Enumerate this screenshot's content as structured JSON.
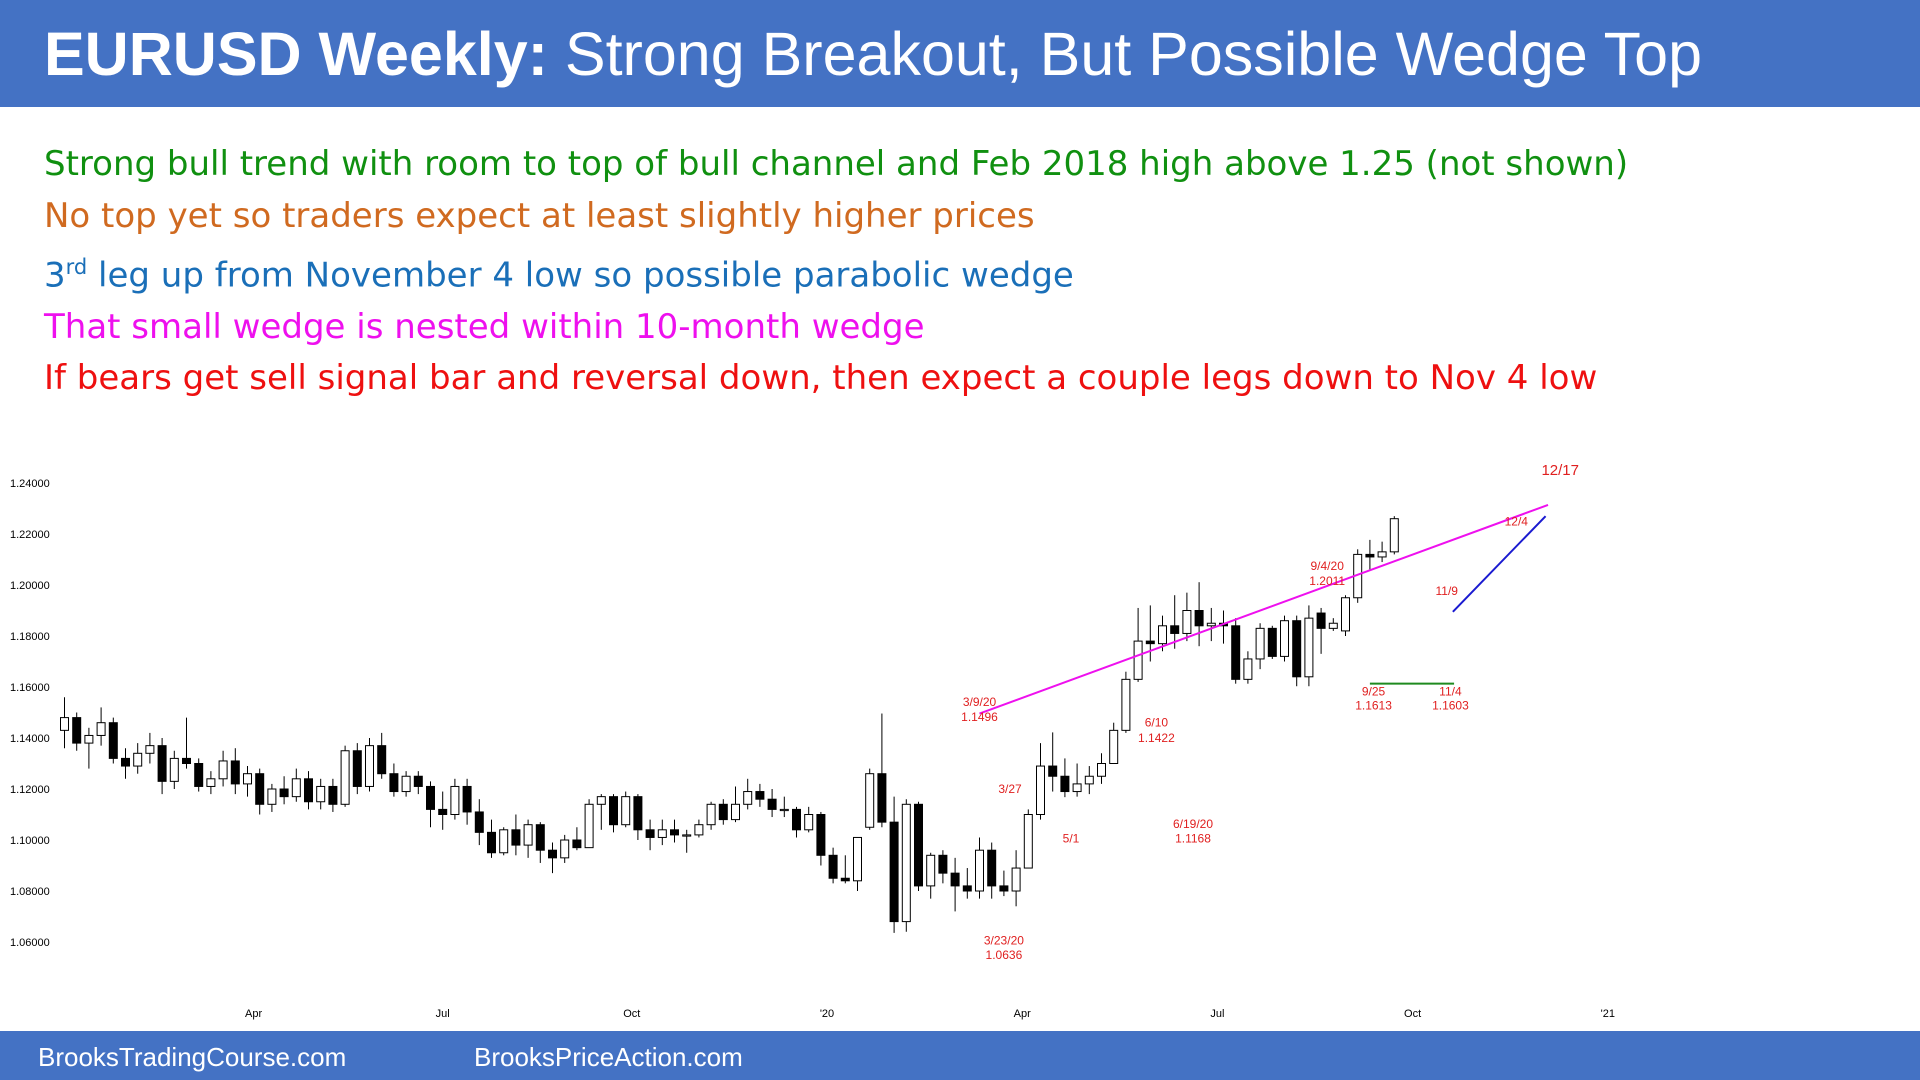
{
  "header": {
    "title_bold": "EURUSD Weekly:",
    "title_rest": " Strong Breakout, But Possible Wedge Top"
  },
  "bullets": [
    {
      "text": "Strong bull trend with room to top of bull channel and Feb 2018 high above 1.25 (not shown)",
      "color": "#109010"
    },
    {
      "text": "No top yet so traders expect at least slightly higher prices",
      "color": "#d06a20"
    },
    {
      "prefix": "3",
      "sup": "rd",
      "text": " leg up from November 4 low so possible parabolic wedge",
      "color": "#1a6fb8"
    },
    {
      "text": "That small wedge is nested within 10-month wedge",
      "color": "#ee10ee"
    },
    {
      "text": "If bears get sell signal bar and reversal down, then expect a couple legs down to Nov 4 low",
      "color": "#ee1010"
    }
  ],
  "footer": {
    "left": "BrooksTradingCourse.com",
    "right": "BrooksPriceAction.com"
  },
  "chart_data": {
    "type": "candlestick",
    "title": "EURUSD Weekly",
    "ylim": [
      1.05,
      1.245
    ],
    "y_ticks": [
      "1.24000",
      "1.22000",
      "1.20000",
      "1.18000",
      "1.16000",
      "1.14000",
      "1.12000",
      "1.10000",
      "1.08000",
      "1.06000"
    ],
    "x_ticks": [
      {
        "label": "Apr",
        "week": 15.5
      },
      {
        "label": "Jul",
        "week": 31
      },
      {
        "label": "Oct",
        "week": 46.5
      },
      {
        "label": "'20",
        "week": 62.5
      },
      {
        "label": "Apr",
        "week": 78.5
      },
      {
        "label": "Jul",
        "week": 94.5
      },
      {
        "label": "Oct",
        "week": 110.5
      },
      {
        "label": "'21",
        "week": 126.5
      }
    ],
    "candles": [
      {
        "o": 1.143,
        "h": 1.156,
        "l": 1.136,
        "c": 1.148
      },
      {
        "o": 1.148,
        "h": 1.15,
        "l": 1.135,
        "c": 1.138
      },
      {
        "o": 1.138,
        "h": 1.144,
        "l": 1.128,
        "c": 1.141
      },
      {
        "o": 1.141,
        "h": 1.152,
        "l": 1.137,
        "c": 1.146
      },
      {
        "o": 1.146,
        "h": 1.148,
        "l": 1.13,
        "c": 1.132
      },
      {
        "o": 1.132,
        "h": 1.136,
        "l": 1.124,
        "c": 1.129
      },
      {
        "o": 1.129,
        "h": 1.138,
        "l": 1.126,
        "c": 1.134
      },
      {
        "o": 1.134,
        "h": 1.142,
        "l": 1.13,
        "c": 1.137
      },
      {
        "o": 1.137,
        "h": 1.14,
        "l": 1.118,
        "c": 1.123
      },
      {
        "o": 1.123,
        "h": 1.135,
        "l": 1.12,
        "c": 1.132
      },
      {
        "o": 1.132,
        "h": 1.148,
        "l": 1.128,
        "c": 1.13
      },
      {
        "o": 1.13,
        "h": 1.132,
        "l": 1.119,
        "c": 1.121
      },
      {
        "o": 1.121,
        "h": 1.127,
        "l": 1.118,
        "c": 1.124
      },
      {
        "o": 1.124,
        "h": 1.135,
        "l": 1.121,
        "c": 1.131
      },
      {
        "o": 1.131,
        "h": 1.136,
        "l": 1.118,
        "c": 1.122
      },
      {
        "o": 1.122,
        "h": 1.129,
        "l": 1.117,
        "c": 1.126
      },
      {
        "o": 1.126,
        "h": 1.128,
        "l": 1.11,
        "c": 1.114
      },
      {
        "o": 1.114,
        "h": 1.122,
        "l": 1.111,
        "c": 1.12
      },
      {
        "o": 1.12,
        "h": 1.125,
        "l": 1.114,
        "c": 1.117
      },
      {
        "o": 1.117,
        "h": 1.128,
        "l": 1.115,
        "c": 1.124
      },
      {
        "o": 1.124,
        "h": 1.127,
        "l": 1.112,
        "c": 1.115
      },
      {
        "o": 1.115,
        "h": 1.124,
        "l": 1.112,
        "c": 1.121
      },
      {
        "o": 1.121,
        "h": 1.124,
        "l": 1.111,
        "c": 1.114
      },
      {
        "o": 1.114,
        "h": 1.137,
        "l": 1.113,
        "c": 1.135
      },
      {
        "o": 1.135,
        "h": 1.138,
        "l": 1.118,
        "c": 1.121
      },
      {
        "o": 1.121,
        "h": 1.14,
        "l": 1.119,
        "c": 1.137
      },
      {
        "o": 1.137,
        "h": 1.142,
        "l": 1.124,
        "c": 1.126
      },
      {
        "o": 1.126,
        "h": 1.13,
        "l": 1.117,
        "c": 1.119
      },
      {
        "o": 1.119,
        "h": 1.127,
        "l": 1.117,
        "c": 1.125
      },
      {
        "o": 1.125,
        "h": 1.127,
        "l": 1.118,
        "c": 1.121
      },
      {
        "o": 1.121,
        "h": 1.123,
        "l": 1.105,
        "c": 1.112
      },
      {
        "o": 1.112,
        "h": 1.119,
        "l": 1.104,
        "c": 1.11
      },
      {
        "o": 1.11,
        "h": 1.124,
        "l": 1.108,
        "c": 1.121
      },
      {
        "o": 1.121,
        "h": 1.124,
        "l": 1.106,
        "c": 1.111
      },
      {
        "o": 1.111,
        "h": 1.116,
        "l": 1.098,
        "c": 1.103
      },
      {
        "o": 1.103,
        "h": 1.108,
        "l": 1.093,
        "c": 1.095
      },
      {
        "o": 1.095,
        "h": 1.105,
        "l": 1.094,
        "c": 1.104
      },
      {
        "o": 1.104,
        "h": 1.11,
        "l": 1.094,
        "c": 1.098
      },
      {
        "o": 1.098,
        "h": 1.108,
        "l": 1.093,
        "c": 1.106
      },
      {
        "o": 1.106,
        "h": 1.107,
        "l": 1.091,
        "c": 1.096
      },
      {
        "o": 1.096,
        "h": 1.099,
        "l": 1.087,
        "c": 1.093
      },
      {
        "o": 1.093,
        "h": 1.102,
        "l": 1.091,
        "c": 1.1
      },
      {
        "o": 1.1,
        "h": 1.105,
        "l": 1.096,
        "c": 1.097
      },
      {
        "o": 1.097,
        "h": 1.116,
        "l": 1.097,
        "c": 1.114
      },
      {
        "o": 1.114,
        "h": 1.118,
        "l": 1.104,
        "c": 1.117
      },
      {
        "o": 1.117,
        "h": 1.118,
        "l": 1.103,
        "c": 1.106
      },
      {
        "o": 1.106,
        "h": 1.119,
        "l": 1.105,
        "c": 1.117
      },
      {
        "o": 1.117,
        "h": 1.118,
        "l": 1.1,
        "c": 1.104
      },
      {
        "o": 1.104,
        "h": 1.108,
        "l": 1.096,
        "c": 1.101
      },
      {
        "o": 1.101,
        "h": 1.108,
        "l": 1.098,
        "c": 1.104
      },
      {
        "o": 1.104,
        "h": 1.108,
        "l": 1.099,
        "c": 1.102
      },
      {
        "o": 1.102,
        "h": 1.104,
        "l": 1.095,
        "c": 1.102
      },
      {
        "o": 1.102,
        "h": 1.108,
        "l": 1.101,
        "c": 1.106
      },
      {
        "o": 1.106,
        "h": 1.115,
        "l": 1.104,
        "c": 1.114
      },
      {
        "o": 1.114,
        "h": 1.116,
        "l": 1.106,
        "c": 1.108
      },
      {
        "o": 1.108,
        "h": 1.121,
        "l": 1.107,
        "c": 1.114
      },
      {
        "o": 1.114,
        "h": 1.124,
        "l": 1.112,
        "c": 1.119
      },
      {
        "o": 1.119,
        "h": 1.122,
        "l": 1.113,
        "c": 1.116
      },
      {
        "o": 1.116,
        "h": 1.12,
        "l": 1.109,
        "c": 1.112
      },
      {
        "o": 1.112,
        "h": 1.117,
        "l": 1.109,
        "c": 1.112
      },
      {
        "o": 1.112,
        "h": 1.113,
        "l": 1.101,
        "c": 1.104
      },
      {
        "o": 1.104,
        "h": 1.113,
        "l": 1.103,
        "c": 1.11
      },
      {
        "o": 1.11,
        "h": 1.111,
        "l": 1.09,
        "c": 1.094
      },
      {
        "o": 1.094,
        "h": 1.097,
        "l": 1.083,
        "c": 1.085
      },
      {
        "o": 1.085,
        "h": 1.094,
        "l": 1.083,
        "c": 1.084
      },
      {
        "o": 1.084,
        "h": 1.101,
        "l": 1.08,
        "c": 1.101
      },
      {
        "o": 1.105,
        "h": 1.128,
        "l": 1.104,
        "c": 1.126
      },
      {
        "o": 1.126,
        "h": 1.1496,
        "l": 1.105,
        "c": 1.107
      },
      {
        "o": 1.107,
        "h": 1.117,
        "l": 1.0636,
        "c": 1.068
      },
      {
        "o": 1.068,
        "h": 1.116,
        "l": 1.064,
        "c": 1.114
      },
      {
        "o": 1.114,
        "h": 1.115,
        "l": 1.08,
        "c": 1.082
      },
      {
        "o": 1.082,
        "h": 1.095,
        "l": 1.077,
        "c": 1.094
      },
      {
        "o": 1.094,
        "h": 1.096,
        "l": 1.083,
        "c": 1.087
      },
      {
        "o": 1.087,
        "h": 1.093,
        "l": 1.072,
        "c": 1.082
      },
      {
        "o": 1.082,
        "h": 1.089,
        "l": 1.077,
        "c": 1.08
      },
      {
        "o": 1.08,
        "h": 1.101,
        "l": 1.077,
        "c": 1.096
      },
      {
        "o": 1.096,
        "h": 1.099,
        "l": 1.077,
        "c": 1.082
      },
      {
        "o": 1.082,
        "h": 1.088,
        "l": 1.078,
        "c": 1.08
      },
      {
        "o": 1.08,
        "h": 1.096,
        "l": 1.074,
        "c": 1.089
      },
      {
        "o": 1.089,
        "h": 1.112,
        "l": 1.089,
        "c": 1.11
      },
      {
        "o": 1.11,
        "h": 1.138,
        "l": 1.108,
        "c": 1.129
      },
      {
        "o": 1.129,
        "h": 1.1422,
        "l": 1.119,
        "c": 1.125
      },
      {
        "o": 1.125,
        "h": 1.132,
        "l": 1.1168,
        "c": 1.119
      },
      {
        "o": 1.119,
        "h": 1.13,
        "l": 1.117,
        "c": 1.122
      },
      {
        "o": 1.122,
        "h": 1.129,
        "l": 1.118,
        "c": 1.125
      },
      {
        "o": 1.125,
        "h": 1.134,
        "l": 1.122,
        "c": 1.13
      },
      {
        "o": 1.13,
        "h": 1.146,
        "l": 1.13,
        "c": 1.143
      },
      {
        "o": 1.143,
        "h": 1.166,
        "l": 1.142,
        "c": 1.163
      },
      {
        "o": 1.163,
        "h": 1.191,
        "l": 1.162,
        "c": 1.178
      },
      {
        "o": 1.178,
        "h": 1.192,
        "l": 1.17,
        "c": 1.177
      },
      {
        "o": 1.177,
        "h": 1.188,
        "l": 1.174,
        "c": 1.184
      },
      {
        "o": 1.184,
        "h": 1.196,
        "l": 1.175,
        "c": 1.181
      },
      {
        "o": 1.181,
        "h": 1.197,
        "l": 1.178,
        "c": 1.19
      },
      {
        "o": 1.19,
        "h": 1.2011,
        "l": 1.176,
        "c": 1.184
      },
      {
        "o": 1.184,
        "h": 1.191,
        "l": 1.178,
        "c": 1.185
      },
      {
        "o": 1.185,
        "h": 1.19,
        "l": 1.177,
        "c": 1.184
      },
      {
        "o": 1.184,
        "h": 1.187,
        "l": 1.1613,
        "c": 1.163
      },
      {
        "o": 1.163,
        "h": 1.174,
        "l": 1.1613,
        "c": 1.171
      },
      {
        "o": 1.171,
        "h": 1.185,
        "l": 1.167,
        "c": 1.183
      },
      {
        "o": 1.183,
        "h": 1.184,
        "l": 1.171,
        "c": 1.172
      },
      {
        "o": 1.172,
        "h": 1.188,
        "l": 1.17,
        "c": 1.186
      },
      {
        "o": 1.186,
        "h": 1.188,
        "l": 1.1603,
        "c": 1.164
      },
      {
        "o": 1.164,
        "h": 1.192,
        "l": 1.1603,
        "c": 1.187
      },
      {
        "o": 1.189,
        "h": 1.191,
        "l": 1.173,
        "c": 1.183
      },
      {
        "o": 1.183,
        "h": 1.187,
        "l": 1.182,
        "c": 1.185
      },
      {
        "o": 1.182,
        "h": 1.196,
        "l": 1.18,
        "c": 1.195
      },
      {
        "o": 1.195,
        "h": 1.214,
        "l": 1.193,
        "c": 1.212
      },
      {
        "o": 1.212,
        "h": 1.2177,
        "l": 1.206,
        "c": 1.211
      },
      {
        "o": 1.211,
        "h": 1.217,
        "l": 1.209,
        "c": 1.213
      },
      {
        "o": 1.213,
        "h": 1.227,
        "l": 1.212,
        "c": 1.226
      }
    ],
    "lines": [
      {
        "name": "wedge-line",
        "color": "#ee10ee",
        "from": {
          "week": 75,
          "price": 1.1496
        },
        "to": {
          "week": 121.6,
          "price": 1.2314
        }
      },
      {
        "name": "small-wedge-line",
        "color": "#1a1ad0",
        "from": {
          "week": 113.8,
          "price": 1.1895
        },
        "to": {
          "week": 121.4,
          "price": 1.227
        }
      },
      {
        "name": "double-bottom-line",
        "color": "#1f8a1f",
        "from": {
          "week": 107,
          "price": 1.1613
        },
        "to": {
          "week": 113.9,
          "price": 1.1613
        }
      }
    ],
    "annotations": [
      {
        "text": "3/9/20",
        "week": 75,
        "price": 1.1526,
        "size": "small"
      },
      {
        "text": "1.1496",
        "week": 75,
        "price": 1.1466,
        "size": "small"
      },
      {
        "text": "3/27",
        "week": 77.5,
        "price": 1.1185,
        "size": "small"
      },
      {
        "text": "3/23/20",
        "week": 77,
        "price": 1.059,
        "size": "small"
      },
      {
        "text": "1.0636",
        "week": 77,
        "price": 1.0533,
        "size": "small"
      },
      {
        "text": "5/1",
        "week": 82.5,
        "price": 1.099,
        "size": "small"
      },
      {
        "text": "6/10",
        "week": 89.5,
        "price": 1.1445,
        "size": "small"
      },
      {
        "text": "1.1422",
        "week": 89.5,
        "price": 1.1385,
        "size": "small"
      },
      {
        "text": "6/19/20",
        "week": 92.5,
        "price": 1.1047,
        "size": "small"
      },
      {
        "text": "1.1168",
        "week": 92.5,
        "price": 1.0991,
        "size": "small"
      },
      {
        "text": "9/4/20",
        "week": 103.5,
        "price": 1.2058,
        "size": "small"
      },
      {
        "text": "1.2011",
        "week": 103.5,
        "price": 1.2,
        "size": "small"
      },
      {
        "text": "9/25",
        "week": 107.3,
        "price": 1.1567,
        "size": "small"
      },
      {
        "text": "1.1613",
        "week": 107.3,
        "price": 1.1511,
        "size": "small"
      },
      {
        "text": "11/4",
        "week": 113.6,
        "price": 1.1567,
        "size": "small"
      },
      {
        "text": "1.1603",
        "week": 113.6,
        "price": 1.1511,
        "size": "small"
      },
      {
        "text": "11/9",
        "week": 113.3,
        "price": 1.196,
        "size": "small"
      },
      {
        "text": "12/4",
        "week": 119,
        "price": 1.2234,
        "size": "small"
      },
      {
        "text": "12/17",
        "week": 122.6,
        "price": 1.2432,
        "size": "big"
      }
    ]
  }
}
